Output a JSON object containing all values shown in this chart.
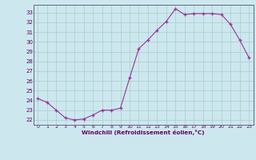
{
  "x": [
    0,
    1,
    2,
    3,
    4,
    5,
    6,
    7,
    8,
    9,
    10,
    11,
    12,
    13,
    14,
    15,
    16,
    17,
    18,
    19,
    20,
    21,
    22,
    23
  ],
  "y": [
    24.2,
    23.8,
    23.0,
    22.2,
    22.0,
    22.1,
    22.5,
    23.0,
    23.0,
    23.2,
    26.3,
    29.3,
    30.2,
    31.2,
    32.1,
    33.4,
    32.8,
    32.9,
    32.9,
    32.9,
    32.8,
    31.8,
    30.2,
    28.4
  ],
  "line_color": "#993399",
  "marker_color": "#993399",
  "bg_color": "#cce8ee",
  "grid_color": "#aacccc",
  "xlabel": "Windchill (Refroidissement éolien,°C)",
  "xlabel_color": "#660066",
  "tick_color": "#660066",
  "ylim": [
    21.5,
    33.8
  ],
  "xlim": [
    -0.5,
    23.5
  ],
  "yticks": [
    22,
    23,
    24,
    25,
    26,
    27,
    28,
    29,
    30,
    31,
    32,
    33
  ],
  "xticks": [
    0,
    1,
    2,
    3,
    4,
    5,
    6,
    7,
    8,
    9,
    10,
    11,
    12,
    13,
    14,
    15,
    16,
    17,
    18,
    19,
    20,
    21,
    22,
    23
  ]
}
